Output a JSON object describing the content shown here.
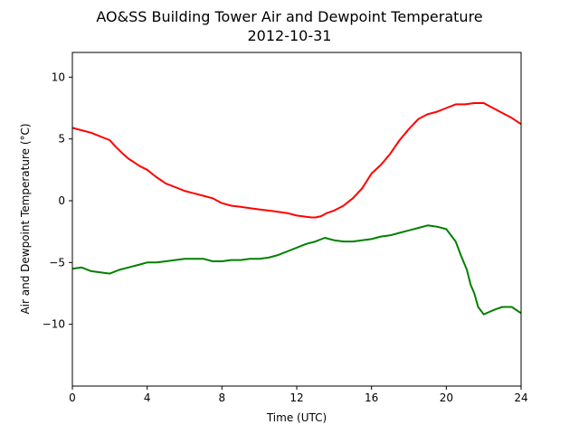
{
  "chart_data": {
    "type": "line",
    "title": "AO&SS Building Tower Air and Dewpoint Temperature",
    "subtitle": "2012-10-31",
    "xlabel": "Time (UTC)",
    "ylabel": "Air and Dewpoint Temperature (°C)",
    "xlim": [
      0,
      24
    ],
    "ylim": [
      -15,
      12
    ],
    "xticks": [
      0,
      4,
      8,
      12,
      16,
      20,
      24
    ],
    "yticks": [
      -10,
      -5,
      0,
      5,
      10
    ],
    "grid": false,
    "series": [
      {
        "color": "#ff0000",
        "x": [
          0,
          0.5,
          1,
          1.5,
          2,
          2.3,
          2.7,
          3,
          3.3,
          3.6,
          4,
          4.5,
          5,
          5.5,
          6,
          6.5,
          7,
          7.5,
          8,
          8.5,
          9,
          9.5,
          10,
          10.5,
          11,
          11.5,
          12,
          12.5,
          12.8,
          13,
          13.3,
          13.6,
          14,
          14.5,
          15,
          15.5,
          16,
          16.5,
          17,
          17.5,
          18,
          18.5,
          19,
          19.5,
          20,
          20.5,
          21,
          21.5,
          22,
          22.5,
          23,
          23.5,
          24
        ],
        "y": [
          5.9,
          5.7,
          5.5,
          5.2,
          4.9,
          4.4,
          3.8,
          3.4,
          3.1,
          2.8,
          2.5,
          1.9,
          1.4,
          1.1,
          0.8,
          0.6,
          0.4,
          0.2,
          -0.2,
          -0.4,
          -0.5,
          -0.6,
          -0.7,
          -0.8,
          -0.9,
          -1.0,
          -1.2,
          -1.3,
          -1.35,
          -1.35,
          -1.25,
          -1.0,
          -0.8,
          -0.4,
          0.2,
          1.0,
          2.2,
          2.9,
          3.8,
          4.9,
          5.8,
          6.6,
          7.0,
          7.2,
          7.5,
          7.8,
          7.8,
          7.9,
          7.9,
          7.5,
          7.1,
          6.7,
          6.2
        ]
      },
      {
        "color": "#008000",
        "x": [
          0,
          0.5,
          1,
          1.5,
          2,
          2.5,
          3,
          3.5,
          4,
          4.5,
          5,
          5.5,
          6,
          6.5,
          7,
          7.5,
          8,
          8.5,
          9,
          9.5,
          10,
          10.5,
          11,
          11.5,
          12,
          12.5,
          13,
          13.5,
          14,
          14.5,
          15,
          15.5,
          16,
          16.5,
          17,
          17.5,
          18,
          18.5,
          19,
          19.5,
          20,
          20.5,
          20.8,
          21.1,
          21.3,
          21.5,
          21.7,
          22,
          22.3,
          22.6,
          23,
          23.5,
          24
        ],
        "y": [
          -5.5,
          -5.4,
          -5.7,
          -5.8,
          -5.9,
          -5.6,
          -5.4,
          -5.2,
          -5.0,
          -5.0,
          -4.9,
          -4.8,
          -4.7,
          -4.7,
          -4.7,
          -4.9,
          -4.9,
          -4.8,
          -4.8,
          -4.7,
          -4.7,
          -4.6,
          -4.4,
          -4.1,
          -3.8,
          -3.5,
          -3.3,
          -3.0,
          -3.2,
          -3.3,
          -3.3,
          -3.2,
          -3.1,
          -2.9,
          -2.8,
          -2.6,
          -2.4,
          -2.2,
          -2.0,
          -2.1,
          -2.3,
          -3.3,
          -4.5,
          -5.6,
          -6.8,
          -7.5,
          -8.6,
          -9.2,
          -9.0,
          -8.8,
          -8.6,
          -8.6,
          -9.1
        ]
      }
    ]
  }
}
